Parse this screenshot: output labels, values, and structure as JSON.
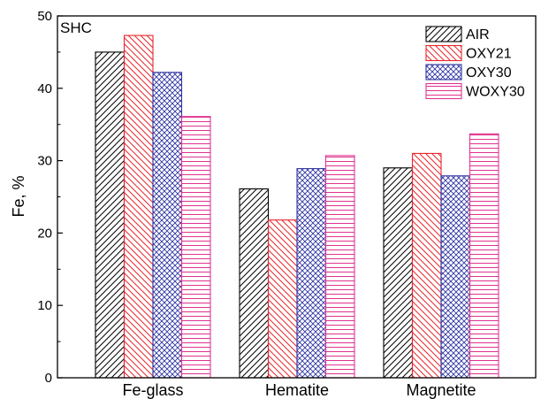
{
  "chart_data": {
    "type": "bar",
    "panel_label": "SHC",
    "ylabel": "Fe, %",
    "xlabel": "",
    "ylim": [
      0,
      50
    ],
    "yticks": [
      "0",
      "10",
      "20",
      "30",
      "40",
      "50"
    ],
    "categories": [
      "Fe-glass",
      "Hematite",
      "Magnetite"
    ],
    "legend_position": "top-right",
    "grid": false,
    "series": [
      {
        "name": "AIR",
        "values": [
          45,
          26.1,
          29
        ],
        "color": "#000000",
        "pattern": "diagonal-up"
      },
      {
        "name": "OXY21",
        "values": [
          47.3,
          21.8,
          31
        ],
        "color": "#e8262c",
        "pattern": "diagonal-down"
      },
      {
        "name": "OXY30",
        "values": [
          42.2,
          28.9,
          27.9
        ],
        "color": "#2f35a3",
        "pattern": "crosshatch"
      },
      {
        "name": "WOXY30",
        "values": [
          36.1,
          30.7,
          33.7
        ],
        "color": "#e0338f",
        "pattern": "horizontal"
      }
    ]
  }
}
